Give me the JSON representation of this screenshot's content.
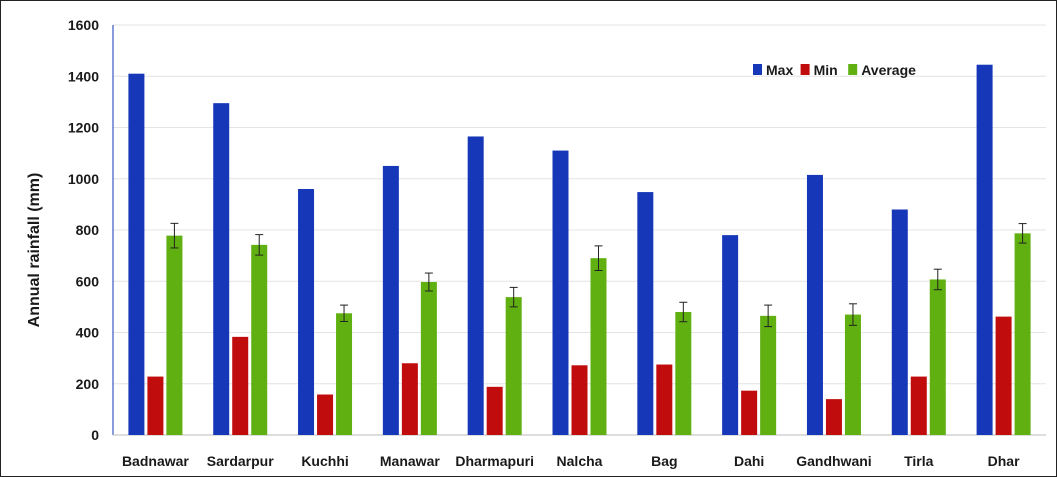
{
  "chart_data": {
    "type": "bar",
    "title": "",
    "xlabel": "",
    "ylabel": "Annual rainfall (mm)",
    "ylim": [
      0,
      1600
    ],
    "yticks": [
      0,
      200,
      400,
      600,
      800,
      1000,
      1200,
      1400,
      1600
    ],
    "grid": true,
    "legend_position": "top-right",
    "categories": [
      "Badnawar",
      "Sardarpur",
      "Kuchhi",
      "Manawar",
      "Dharmapuri",
      "Nalcha",
      "Bag",
      "Dahi",
      "Gandhwani",
      "Tirla",
      "Dhar"
    ],
    "series": [
      {
        "name": "Max",
        "color": "#1537b8",
        "values": [
          1410,
          1295,
          960,
          1050,
          1165,
          1110,
          948,
          780,
          1015,
          880,
          1445
        ]
      },
      {
        "name": "Min",
        "color": "#c00c0c",
        "values": [
          228,
          383,
          158,
          280,
          188,
          272,
          275,
          173,
          140,
          228,
          462
        ]
      },
      {
        "name": "Average",
        "color": "#5fb010",
        "values": [
          778,
          742,
          475,
          597,
          538,
          690,
          480,
          465,
          470,
          607,
          787
        ],
        "error": [
          48,
          40,
          32,
          35,
          38,
          48,
          38,
          42,
          42,
          40,
          38
        ]
      }
    ]
  }
}
